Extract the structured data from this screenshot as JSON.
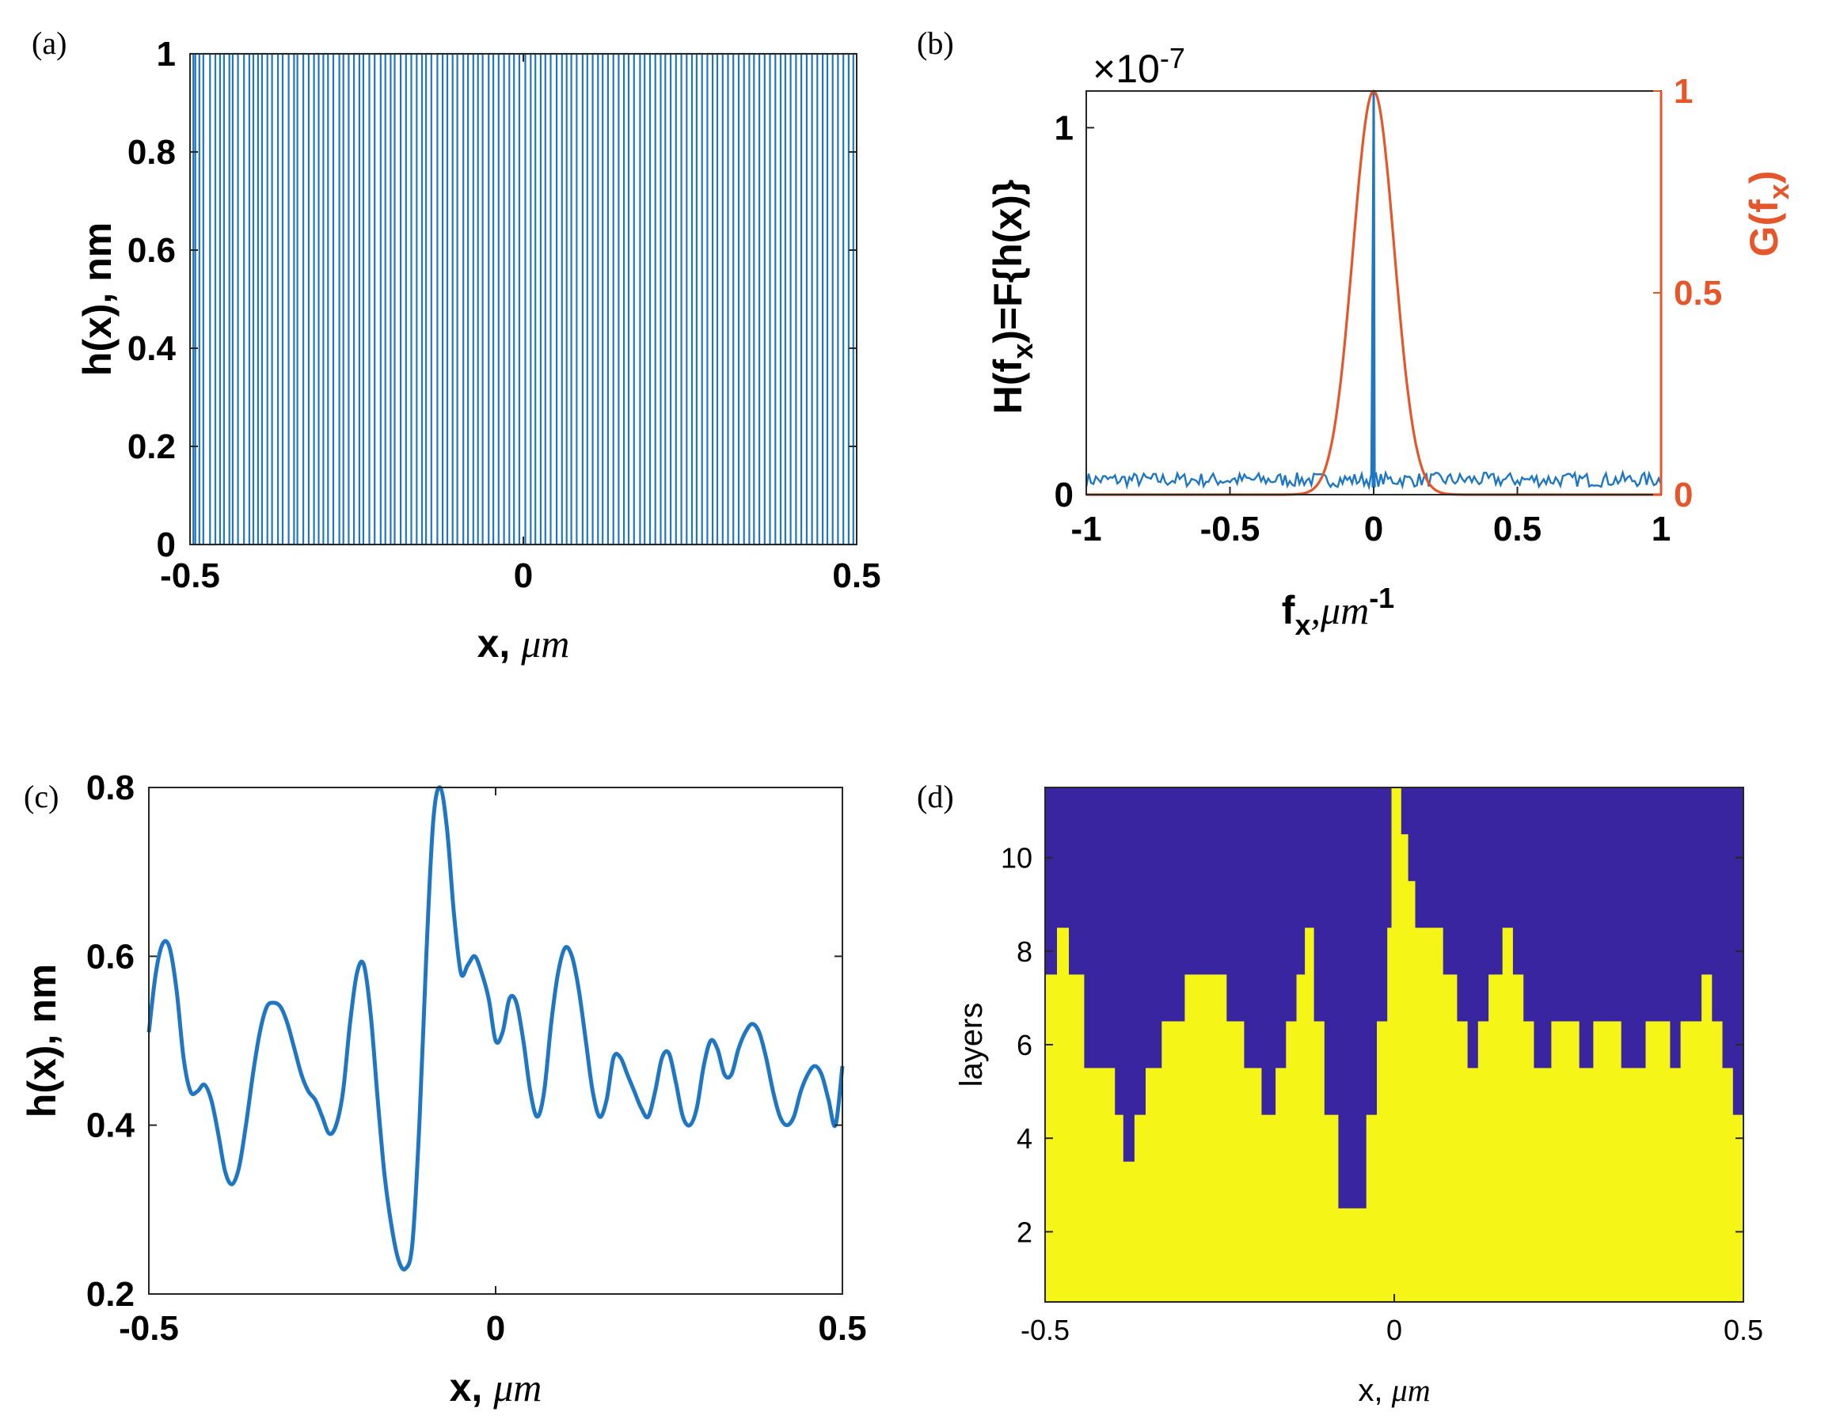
{
  "panels": {
    "a": "(a)",
    "b": "(b)",
    "c": "(c)",
    "d": "(d)"
  },
  "colors": {
    "blue": "#1f77c4",
    "orange": "#e5562a",
    "navy": "#3a25a0",
    "yellow": "#f5f518"
  },
  "chart_data": [
    {
      "id": "a",
      "type": "line",
      "xlabel": "x, μm",
      "ylabel": "h(x), nm",
      "xlim": [
        -0.5,
        0.5
      ],
      "ylim": [
        0,
        1
      ],
      "xticks": [
        "-0.5",
        "0",
        "0.5"
      ],
      "yticks": [
        "0",
        "0.2",
        "0.4",
        "0.6",
        "0.8",
        "1"
      ],
      "description_values": "binary random height profile switching between 0 and 1",
      "transitions_x": [
        -0.495,
        -0.492,
        -0.486,
        -0.48,
        -0.47,
        -0.462,
        -0.455,
        -0.449,
        -0.441,
        -0.436,
        -0.428,
        -0.419,
        -0.411,
        -0.405,
        -0.398,
        -0.392,
        -0.384,
        -0.377,
        -0.368,
        -0.361,
        -0.352,
        -0.344,
        -0.339,
        -0.33,
        -0.322,
        -0.314,
        -0.307,
        -0.3,
        -0.293,
        -0.285,
        -0.276,
        -0.27,
        -0.262,
        -0.254,
        -0.246,
        -0.24,
        -0.231,
        -0.223,
        -0.214,
        -0.207,
        -0.199,
        -0.193,
        -0.184,
        -0.176,
        -0.168,
        -0.16,
        -0.152,
        -0.146,
        -0.138,
        -0.129,
        -0.121,
        -0.114,
        -0.106,
        -0.099,
        -0.09,
        -0.083,
        -0.075,
        -0.068,
        -0.061,
        -0.052,
        -0.045,
        -0.037,
        -0.029,
        -0.021,
        -0.014,
        -0.006,
        0.003,
        0.011,
        0.018,
        0.026,
        0.033,
        0.041,
        0.05,
        0.058,
        0.065,
        0.072,
        0.08,
        0.089,
        0.096,
        0.104,
        0.112,
        0.119,
        0.127,
        0.135,
        0.143,
        0.151,
        0.158,
        0.166,
        0.175,
        0.182,
        0.19,
        0.198,
        0.206,
        0.213,
        0.221,
        0.229,
        0.237,
        0.245,
        0.253,
        0.26,
        0.268,
        0.276,
        0.284,
        0.291,
        0.299,
        0.307,
        0.315,
        0.323,
        0.331,
        0.339,
        0.346,
        0.354,
        0.362,
        0.37,
        0.378,
        0.386,
        0.393,
        0.401,
        0.409,
        0.417,
        0.425,
        0.433,
        0.441,
        0.449,
        0.456,
        0.464,
        0.472,
        0.48,
        0.488,
        0.495
      ]
    },
    {
      "id": "b",
      "type": "line",
      "xlabel": "f",
      "xlabel_sub": "x",
      "xlabel_rest": ",μm",
      "xlabel_sup": "-1",
      "ylabel_left": "H(f",
      "ylabel_left_sub": "x",
      "ylabel_left_rest": ")=F{h(x)}",
      "ylabel_right": "G(f",
      "ylabel_right_sub": "x",
      "ylabel_right_rest": ")",
      "exponent_label": "×10",
      "exponent_sup": "-7",
      "xlim": [
        -1,
        1
      ],
      "ylim_left": [
        0,
        1.1
      ],
      "ylim_right": [
        0,
        1
      ],
      "xticks": [
        "-1",
        "-0.5",
        "0",
        "0.5",
        "1"
      ],
      "yticks_left": [
        "0",
        "1"
      ],
      "yticks_right": [
        "0",
        "0.5",
        "1"
      ],
      "series": [
        {
          "axis": "left",
          "color": "blue",
          "noise_level": 0.06,
          "peak_x": 0,
          "peak_value": 1.1
        },
        {
          "axis": "right",
          "color": "orange",
          "shape": "gaussian",
          "center": 0,
          "sigma": 0.072,
          "peak_value": 1
        }
      ]
    },
    {
      "id": "c",
      "type": "line",
      "xlabel": "x, μm",
      "ylabel": "h(x), nm",
      "xlim": [
        -0.5,
        0.5
      ],
      "ylim": [
        0.2,
        0.8
      ],
      "xticks": [
        "-0.5",
        "0",
        "0.5"
      ],
      "yticks": [
        "0.2",
        "0.4",
        "0.6",
        "0.8"
      ],
      "x": [
        -0.5,
        -0.49,
        -0.48,
        -0.47,
        -0.46,
        -0.45,
        -0.44,
        -0.43,
        -0.42,
        -0.41,
        -0.4,
        -0.39,
        -0.38,
        -0.37,
        -0.36,
        -0.35,
        -0.34,
        -0.33,
        -0.32,
        -0.31,
        -0.3,
        -0.29,
        -0.28,
        -0.27,
        -0.26,
        -0.25,
        -0.24,
        -0.23,
        -0.22,
        -0.21,
        -0.2,
        -0.19,
        -0.18,
        -0.17,
        -0.16,
        -0.15,
        -0.14,
        -0.13,
        -0.12,
        -0.11,
        -0.1,
        -0.09,
        -0.08,
        -0.07,
        -0.06,
        -0.05,
        -0.04,
        -0.03,
        -0.02,
        -0.01,
        0.0,
        0.01,
        0.02,
        0.03,
        0.04,
        0.05,
        0.06,
        0.07,
        0.08,
        0.09,
        0.1,
        0.11,
        0.12,
        0.13,
        0.14,
        0.15,
        0.16,
        0.17,
        0.18,
        0.19,
        0.2,
        0.21,
        0.22,
        0.23,
        0.24,
        0.25,
        0.26,
        0.27,
        0.28,
        0.29,
        0.3,
        0.31,
        0.32,
        0.33,
        0.34,
        0.35,
        0.36,
        0.37,
        0.38,
        0.39,
        0.4,
        0.41,
        0.42,
        0.43,
        0.44,
        0.45,
        0.46,
        0.47,
        0.48,
        0.49,
        0.5
      ],
      "y": [
        0.51,
        0.58,
        0.615,
        0.61,
        0.56,
        0.48,
        0.44,
        0.44,
        0.448,
        0.43,
        0.39,
        0.345,
        0.33,
        0.35,
        0.4,
        0.46,
        0.51,
        0.54,
        0.545,
        0.54,
        0.52,
        0.49,
        0.46,
        0.44,
        0.43,
        0.41,
        0.39,
        0.4,
        0.44,
        0.52,
        0.58,
        0.59,
        0.53,
        0.43,
        0.34,
        0.28,
        0.24,
        0.23,
        0.26,
        0.4,
        0.6,
        0.76,
        0.8,
        0.75,
        0.65,
        0.58,
        0.59,
        0.6,
        0.58,
        0.55,
        0.5,
        0.51,
        0.55,
        0.545,
        0.5,
        0.44,
        0.41,
        0.44,
        0.52,
        0.58,
        0.61,
        0.6,
        0.56,
        0.5,
        0.44,
        0.41,
        0.43,
        0.48,
        0.48,
        0.46,
        0.44,
        0.42,
        0.41,
        0.44,
        0.48,
        0.485,
        0.45,
        0.41,
        0.4,
        0.42,
        0.47,
        0.5,
        0.49,
        0.46,
        0.46,
        0.49,
        0.51,
        0.52,
        0.51,
        0.48,
        0.44,
        0.41,
        0.4,
        0.41,
        0.44,
        0.46,
        0.47,
        0.46,
        0.43,
        0.4,
        0.47
      ]
    },
    {
      "id": "d",
      "type": "area",
      "xlabel": "x, μm",
      "ylabel": "layers",
      "xlim": [
        -0.5,
        0.5
      ],
      "ylim": [
        0.5,
        11.5
      ],
      "xticks": [
        "-0.5",
        "0",
        "0.5"
      ],
      "yticks": [
        "2",
        "4",
        "6",
        "8",
        "10"
      ],
      "step_x": [
        -0.5,
        -0.483,
        -0.466,
        -0.444,
        -0.422,
        -0.4,
        -0.388,
        -0.372,
        -0.356,
        -0.333,
        -0.3,
        -0.27,
        -0.24,
        -0.215,
        -0.19,
        -0.17,
        -0.155,
        -0.14,
        -0.128,
        -0.115,
        -0.1,
        -0.08,
        -0.06,
        -0.04,
        -0.025,
        -0.01,
        -0.004,
        0.004,
        0.01,
        0.02,
        0.03,
        0.05,
        0.07,
        0.09,
        0.105,
        0.12,
        0.135,
        0.155,
        0.17,
        0.185,
        0.2,
        0.215,
        0.225,
        0.245,
        0.265,
        0.285,
        0.305,
        0.325,
        0.34,
        0.36,
        0.375,
        0.395,
        0.41,
        0.425,
        0.44,
        0.455,
        0.47,
        0.485
      ],
      "step_layers": [
        7,
        8,
        7,
        5,
        5,
        4,
        3,
        4,
        5,
        6,
        7,
        7,
        6,
        5,
        4,
        5,
        6,
        7,
        8,
        6,
        4,
        2,
        2,
        4,
        6,
        8,
        11,
        11,
        10,
        9,
        8,
        8,
        7,
        6,
        5,
        6,
        7,
        8,
        7,
        6,
        5,
        5,
        6,
        6,
        5,
        6,
        6,
        5,
        5,
        6,
        6,
        5,
        6,
        6,
        7,
        6,
        5,
        4
      ]
    }
  ]
}
